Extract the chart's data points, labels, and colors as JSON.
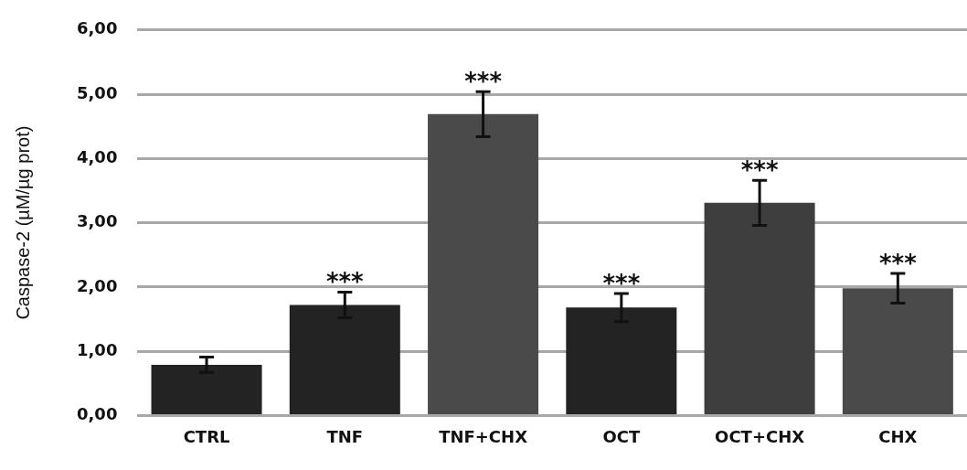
{
  "chart_data": {
    "type": "bar",
    "ylabel": "Caspase-2 (µM/µg prot)",
    "categories": [
      "CTRL",
      "TNF",
      "TNF+CHX",
      "OCT",
      "OCT+CHX",
      "CHX"
    ],
    "values": [
      0.79,
      1.72,
      4.69,
      1.68,
      3.31,
      1.98
    ],
    "colors": [
      "#232323",
      "#232323",
      "#4a4a4a",
      "#232323",
      "#3e3e3e",
      "#4a4a4a"
    ],
    "errors": [
      0.12,
      0.2,
      0.35,
      0.22,
      0.35,
      0.23
    ],
    "ylim": [
      0,
      6
    ],
    "yticks": [
      {
        "value": 0,
        "label": "0,00"
      },
      {
        "value": 1,
        "label": "1,00"
      },
      {
        "value": 2,
        "label": "2,00"
      },
      {
        "value": 3,
        "label": "3,00"
      },
      {
        "value": 4,
        "label": "4,00"
      },
      {
        "value": 5,
        "label": "5,00"
      },
      {
        "value": 6,
        "label": "6,00"
      }
    ],
    "grid": "y",
    "legend": false,
    "annotations": [
      "***",
      "***",
      "***",
      "***",
      "***"
    ]
  }
}
